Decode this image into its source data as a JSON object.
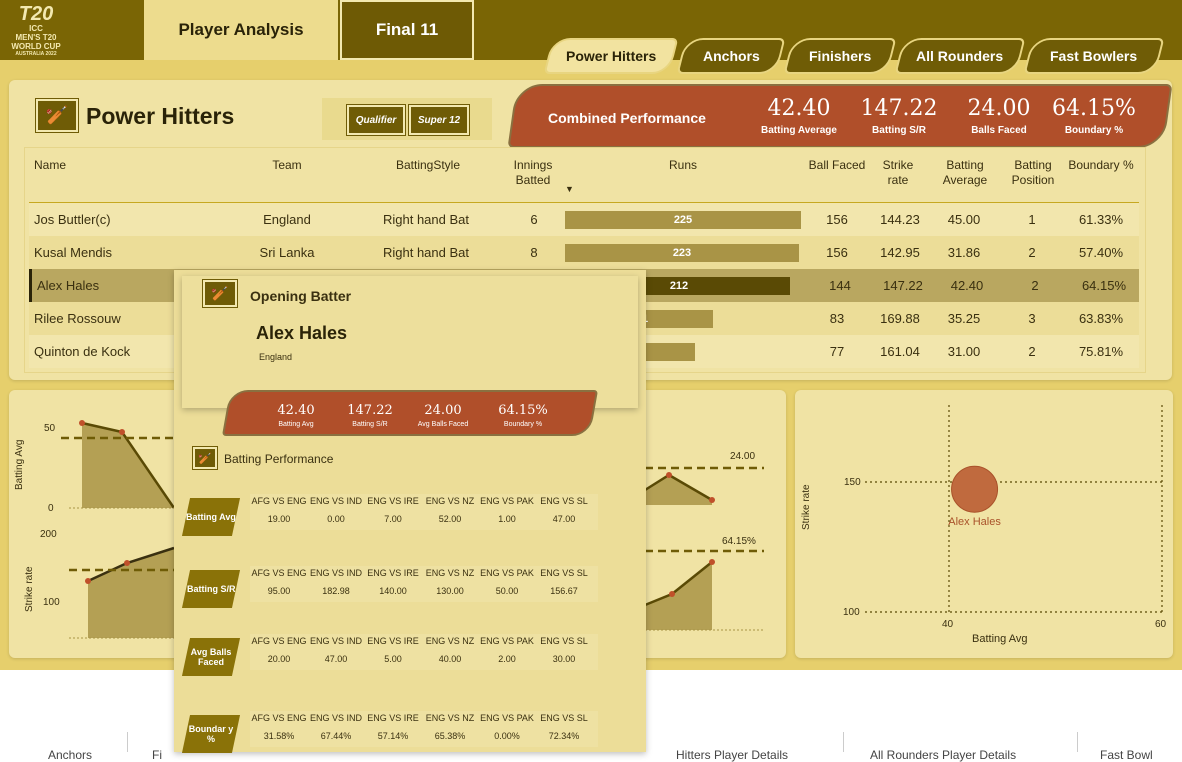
{
  "logo": {
    "line1": "T20",
    "line2": "ICC",
    "line3": "MEN'S T20",
    "line4": "WORLD CUP",
    "line5": "AUSTRALIA 2022"
  },
  "main_tabs": [
    "Player Analysis",
    "Final 11"
  ],
  "sub_tabs": [
    "Power Hitters",
    "Anchors",
    "Finishers",
    "All Rounders",
    "Fast Bowlers"
  ],
  "section_title": "Power Hitters",
  "filters": [
    "Qualifier",
    "Super 12"
  ],
  "combined": {
    "title": "Combined Performance",
    "stats": [
      {
        "value": "42.40",
        "label": "Batting Average"
      },
      {
        "value": "147.22",
        "label": "Batting S/R"
      },
      {
        "value": "24.00",
        "label": "Balls Faced"
      },
      {
        "value": "64.15%",
        "label": "Boundary %"
      }
    ]
  },
  "table": {
    "headers": {
      "name": "Name",
      "team": "Team",
      "style": "BattingStyle",
      "innings": "Innings Batted",
      "runs": "Runs",
      "balls": "Ball Faced",
      "sr": "Strike rate",
      "avg": "Batting Average",
      "pos": "Batting Position",
      "boundary": "Boundary %"
    },
    "sort_icon": "sort-desc-icon",
    "rows": [
      {
        "name": "Jos Buttler(c)",
        "team": "England",
        "style": "Right hand Bat",
        "innings": "6",
        "runs": 225,
        "runs_label": "225",
        "balls": "156",
        "sr": "144.23",
        "avg": "45.00",
        "pos": "1",
        "boundary": "61.33%"
      },
      {
        "name": "Kusal Mendis",
        "team": "Sri Lanka",
        "style": "Right hand Bat",
        "innings": "8",
        "runs": 223,
        "runs_label": "223",
        "balls": "156",
        "sr": "142.95",
        "avg": "31.86",
        "pos": "2",
        "boundary": "57.40%"
      },
      {
        "name": "Alex Hales",
        "team": "",
        "style": "",
        "innings": "",
        "runs": 212,
        "runs_label": "212",
        "balls": "144",
        "sr": "147.22",
        "avg": "42.40",
        "pos": "2",
        "boundary": "64.15%"
      },
      {
        "name": "Rilee Rossouw",
        "team": "",
        "style": "",
        "innings": "",
        "runs": 141,
        "runs_label": "141",
        "balls": "83",
        "sr": "169.88",
        "avg": "35.25",
        "pos": "3",
        "boundary": "63.83%"
      },
      {
        "name": "Quinton de Kock",
        "team": "",
        "style": "",
        "innings": "",
        "runs": 124,
        "runs_label": "124",
        "balls": "77",
        "sr": "161.04",
        "avg": "31.00",
        "pos": "2",
        "boundary": "75.81%"
      }
    ]
  },
  "tooltip": {
    "role": "Opening Batter",
    "player": "Alex Hales",
    "country": "England",
    "stats": [
      {
        "value": "42.40",
        "label": "Batting Avg"
      },
      {
        "value": "147.22",
        "label": "Batting S/R"
      },
      {
        "value": "24.00",
        "label": "Avg Balls Faced"
      },
      {
        "value": "64.15%",
        "label": "Boundary %"
      }
    ],
    "perf_title": "Batting Performance",
    "matches": [
      "AFG VS ENG",
      "ENG VS IND",
      "ENG VS IRE",
      "ENG VS NZ",
      "ENG VS PAK",
      "ENG VS SL"
    ],
    "metrics": [
      {
        "label": "Batting Avg",
        "values": [
          "19.00",
          "0.00",
          "7.00",
          "52.00",
          "1.00",
          "47.00"
        ]
      },
      {
        "label": "Batting S/R",
        "values": [
          "95.00",
          "182.98",
          "140.00",
          "130.00",
          "50.00",
          "156.67"
        ]
      },
      {
        "label": "Avg Balls Faced",
        "values": [
          "20.00",
          "47.00",
          "5.00",
          "40.00",
          "2.00",
          "30.00"
        ]
      },
      {
        "label": "Boundar y %",
        "values": [
          "31.58%",
          "67.44%",
          "57.14%",
          "65.38%",
          "0.00%",
          "72.34%"
        ]
      }
    ]
  },
  "left_charts": {
    "avg_axis": {
      "label": "Batting Avg",
      "ticks": [
        "50",
        "0"
      ]
    },
    "sr_axis": {
      "label": "Strike rate",
      "ticks": [
        "200",
        "100"
      ]
    },
    "balls_ref": "24.00",
    "boundary_ref": "64.15%"
  },
  "chart_data": {
    "type": "scatter",
    "xlabel": "Batting Avg",
    "ylabel": "Strike rate",
    "xlim": [
      40,
      60
    ],
    "ylim": [
      100,
      150
    ],
    "x_ticks": [
      "40",
      "60"
    ],
    "y_ticks": [
      "150",
      "100"
    ],
    "points": [
      {
        "label": "Alex Hales",
        "x": 42.4,
        "y": 147.22
      }
    ]
  },
  "bottom_tabs": [
    "Anchors",
    "Fi",
    "Hitters Player Details",
    "All Rounders Player Details",
    "Fast Bowl"
  ],
  "colors": {
    "brand": "#7a6505",
    "accent": "#b04f2a",
    "panel": "#f0e3a4"
  }
}
